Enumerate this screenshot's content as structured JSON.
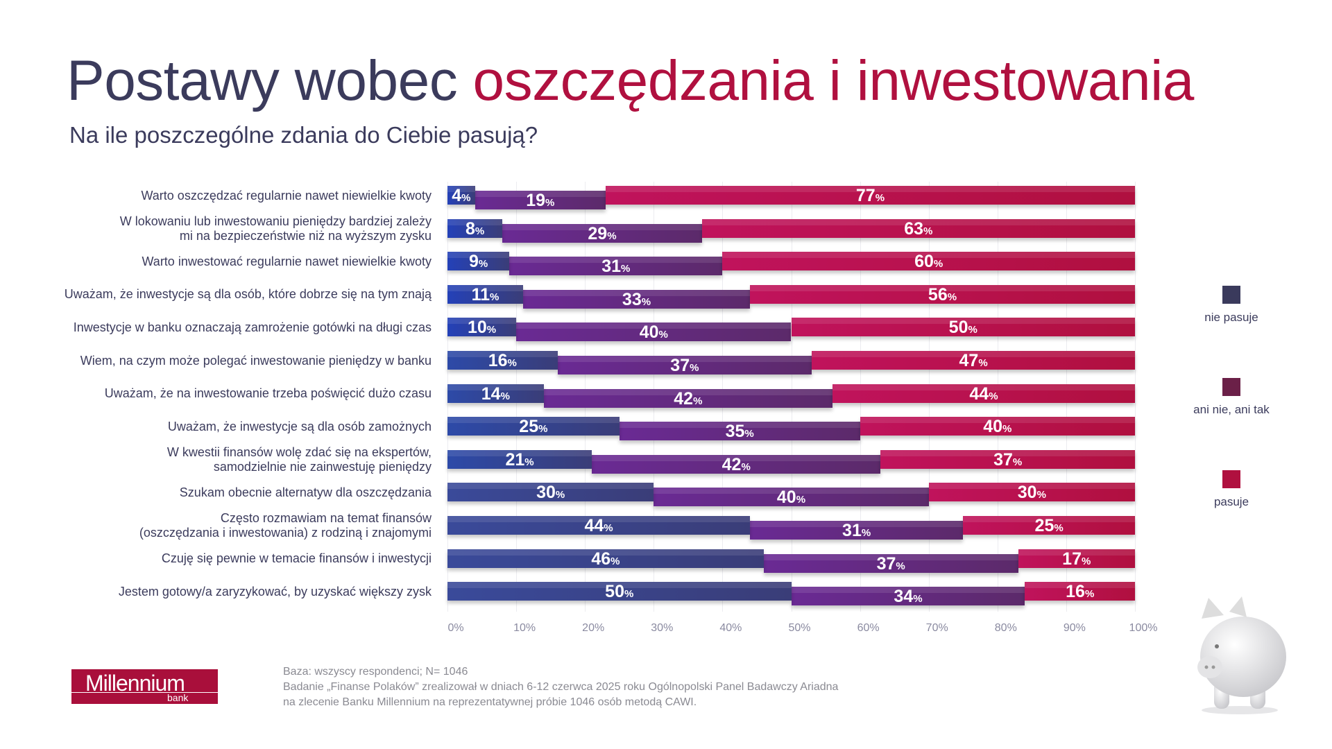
{
  "title": {
    "part1": "Postawy wobec ",
    "part2": "oszczędzania i inwestowania"
  },
  "subtitle": "Na ile poszczególne zdania do Ciebie pasują?",
  "chart_data": {
    "type": "bar",
    "orientation": "horizontal",
    "stacked": true,
    "categories": [
      "Warto oszczędzać regularnie nawet niewielkie kwoty",
      "W lokowaniu lub inwestowaniu pieniędzy bardziej zależy\nmi na bezpieczeństwie niż na wyższym zysku",
      "Warto inwestować regularnie nawet niewielkie kwoty",
      "Uważam, że inwestycje są dla osób, które dobrze się na tym znają",
      "Inwestycje w banku oznaczają zamrożenie gotówki na długi czas",
      "Wiem, na czym może polegać inwestowanie pieniędzy w banku",
      "Uważam, że na inwestowanie trzeba poświęcić dużo czasu",
      "Uważam, że inwestycje są dla osób zamożnych",
      "W kwestii finansów wolę zdać się na ekspertów,\nsamodzielnie nie zainwestuję pieniędzy",
      "Szukam obecnie alternatyw dla oszczędzania",
      "Często rozmawiam na temat finansów\n(oszczędzania i inwestowania) z rodziną i znajomymi",
      "Czuję się pewnie w temacie finansów i inwestycji",
      "Jestem gotowy/a zaryzykować, by uzyskać większy zysk"
    ],
    "series": [
      {
        "name": "nie pasuje",
        "color": "#3a3a5c",
        "values": [
          4,
          8,
          9,
          11,
          10,
          16,
          14,
          25,
          21,
          30,
          44,
          46,
          50
        ]
      },
      {
        "name": "ani nie, ani tak",
        "color": "#6b2048",
        "values": [
          19,
          29,
          31,
          33,
          40,
          37,
          42,
          35,
          42,
          40,
          31,
          37,
          34
        ]
      },
      {
        "name": "pasuje",
        "color": "#b0103f",
        "values": [
          77,
          63,
          60,
          56,
          50,
          47,
          44,
          40,
          37,
          30,
          25,
          17,
          16
        ]
      }
    ],
    "xlim": [
      0,
      100
    ],
    "x_ticks": [
      "0%",
      "10%",
      "20%",
      "30%",
      "40%",
      "50%",
      "60%",
      "70%",
      "80%",
      "90%",
      "100%"
    ],
    "value_suffix": "%",
    "grid": true,
    "legend_placement": "right"
  },
  "footer": {
    "note": [
      "Baza: wszyscy respondenci; N= 1046",
      "Badanie „Finanse Polaków” zrealizował w dniach 6-12 czerwca 2025 roku Ogólnopolski Panel Badawczy Ariadna",
      "na zlecenie Banku Millennium na reprezentatywnej próbie 1046 osób metodą CAWI."
    ],
    "logo": {
      "name": "Millennium",
      "sub": "bank"
    }
  }
}
